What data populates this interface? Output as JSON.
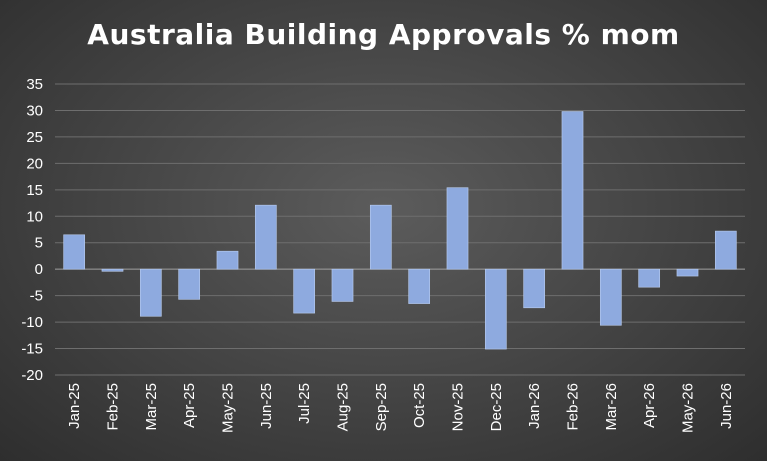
{
  "chart_data": {
    "type": "bar",
    "title": "Australia Building Approvals % mom",
    "xlabel": "",
    "ylabel": "",
    "categories": [
      "Jan-25",
      "Feb-25",
      "Mar-25",
      "Apr-25",
      "May-25",
      "Jun-25",
      "Jul-25",
      "Aug-25",
      "Sep-25",
      "Oct-25",
      "Nov-25",
      "Dec-25",
      "Jan-26",
      "Feb-26",
      "Mar-26",
      "Apr-26",
      "May-26",
      "Jun-26"
    ],
    "values": [
      6.5,
      -0.4,
      -8.9,
      -5.7,
      3.4,
      12.1,
      -8.3,
      -6.1,
      12.1,
      -6.5,
      15.4,
      -15.1,
      -7.3,
      29.8,
      -10.6,
      -3.4,
      -1.3,
      7.2
    ],
    "ylim": [
      -20,
      35
    ],
    "yticks": [
      -20,
      -15,
      -10,
      -5,
      0,
      5,
      10,
      15,
      20,
      25,
      30,
      35
    ],
    "grid": true,
    "legend": "none",
    "colors": {
      "bar": "#8eaadf",
      "background": "#474747",
      "text": "#ffffff",
      "grid": "#6e6e6e"
    }
  }
}
